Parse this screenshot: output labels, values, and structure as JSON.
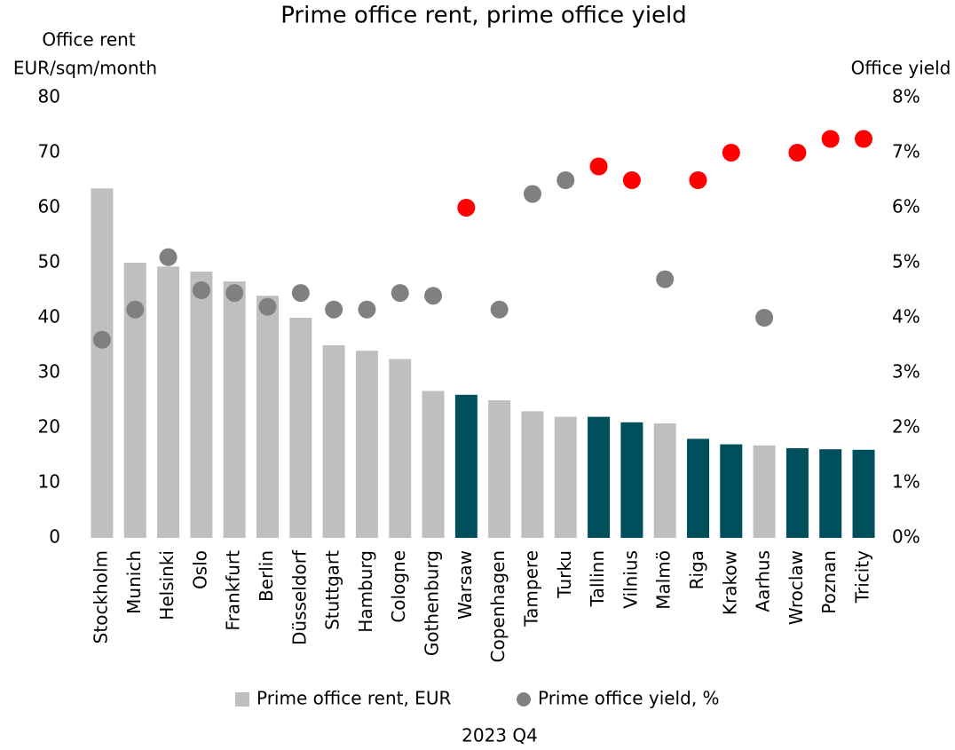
{
  "chart_data": {
    "type": "bar_scatter",
    "title": "Prime office rent, prime office yield",
    "y_label": [
      "Office rent",
      "EUR/sqm/month"
    ],
    "y2_label": "Office yield",
    "x_label": "2023 Q4",
    "categories": [
      "Stockholm",
      "Munich",
      "Helsinki",
      "Oslo",
      "Frankfurt",
      "Berlin",
      "Düsseldorf",
      "Stuttgart",
      "Hamburg",
      "Cologne",
      "Gothenburg",
      "Warsaw",
      "Copenhagen",
      "Tampere",
      "Turku",
      "Tallinn",
      "Vilnius",
      "Malmö",
      "Riga",
      "Krakow",
      "Aarhus",
      "Wroclaw",
      "Poznan",
      "Tricity"
    ],
    "series": [
      {
        "name": "Prime office rent, EUR",
        "type": "bar",
        "color": "#bfbfbf",
        "colors": [
          "#bfbfbf",
          "#bfbfbf",
          "#bfbfbf",
          "#bfbfbf",
          "#bfbfbf",
          "#bfbfbf",
          "#bfbfbf",
          "#bfbfbf",
          "#bfbfbf",
          "#bfbfbf",
          "#bfbfbf",
          "#004f5c",
          "#bfbfbf",
          "#bfbfbf",
          "#bfbfbf",
          "#004f5c",
          "#004f5c",
          "#bfbfbf",
          "#004f5c",
          "#004f5c",
          "#bfbfbf",
          "#004f5c",
          "#004f5c",
          "#004f5c"
        ],
        "values": [
          63.5,
          50,
          49.3,
          48.4,
          46.6,
          44,
          40,
          35,
          34,
          32.5,
          26.7,
          26,
          25,
          23,
          22,
          22,
          21,
          20.8,
          18,
          17,
          16.8,
          16.3,
          16.1,
          16
        ]
      },
      {
        "name": "Prime office yield, %",
        "type": "scatter",
        "axis": "y2",
        "color": "#808080",
        "colors": [
          "#808080",
          "#808080",
          "#808080",
          "#808080",
          "#808080",
          "#808080",
          "#808080",
          "#808080",
          "#808080",
          "#808080",
          "#808080",
          "#ff0000",
          "#808080",
          "#808080",
          "#808080",
          "#ff0000",
          "#ff0000",
          "#808080",
          "#ff0000",
          "#ff0000",
          "#808080",
          "#ff0000",
          "#ff0000",
          "#ff0000"
        ],
        "values": [
          3.6,
          4.15,
          5.1,
          4.5,
          4.45,
          4.2,
          4.45,
          4.15,
          4.15,
          4.45,
          4.4,
          6.0,
          4.15,
          6.25,
          6.5,
          6.75,
          6.5,
          4.7,
          6.5,
          7.0,
          4.0,
          7.0,
          7.25,
          7.25
        ]
      }
    ],
    "ylim": [
      0,
      80
    ],
    "yticks": [
      0,
      10,
      20,
      30,
      40,
      50,
      60,
      70,
      80
    ],
    "y2lim": [
      0,
      8
    ],
    "y2ticks": [
      {
        "value": 0,
        "label": "0%"
      },
      {
        "value": 1,
        "label": "1%"
      },
      {
        "value": 2,
        "label": "2%"
      },
      {
        "value": 3,
        "label": "3%"
      },
      {
        "value": 4,
        "label": "4%"
      },
      {
        "value": 5,
        "label": "5%"
      },
      {
        "value": 6,
        "label": "6%"
      },
      {
        "value": 7,
        "label": "7%"
      },
      {
        "value": 8,
        "label": "8%"
      }
    ],
    "legend": "bottom"
  }
}
